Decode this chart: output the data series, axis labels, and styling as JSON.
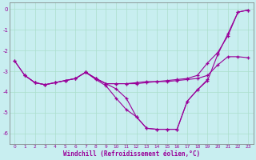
{
  "xlabel": "Windchill (Refroidissement éolien,°C)",
  "ylabel": "",
  "background_color": "#c8eef0",
  "line_color": "#990099",
  "grid_color": "#aaddcc",
  "xlim": [
    -0.5,
    23.5
  ],
  "ylim": [
    -6.5,
    0.3
  ],
  "xticks": [
    0,
    1,
    2,
    3,
    4,
    5,
    6,
    7,
    8,
    9,
    10,
    11,
    12,
    13,
    14,
    15,
    16,
    17,
    18,
    19,
    20,
    21,
    22,
    23
  ],
  "yticks": [
    0,
    -1,
    -2,
    -3,
    -4,
    -5,
    -6
  ],
  "lines": [
    {
      "x": [
        0,
        1,
        2,
        3,
        4,
        5,
        6,
        7,
        8,
        9,
        10,
        11,
        12,
        13,
        14,
        15,
        16,
        17,
        18,
        19,
        20,
        21,
        22,
        23
      ],
      "y": [
        -2.5,
        -3.2,
        -3.55,
        -3.65,
        -3.55,
        -3.45,
        -3.35,
        -3.05,
        -3.4,
        -3.7,
        -4.3,
        -4.85,
        -5.2,
        -5.75,
        -5.8,
        -5.8,
        -5.8,
        -4.45,
        -3.9,
        -3.45,
        -2.2,
        -1.2,
        -0.15,
        -0.05
      ]
    },
    {
      "x": [
        0,
        1,
        2,
        3,
        4,
        5,
        6,
        7,
        8,
        9,
        10,
        11,
        12,
        13,
        14,
        15,
        16,
        17,
        18,
        19,
        20,
        21,
        22,
        23
      ],
      "y": [
        -2.5,
        -3.2,
        -3.55,
        -3.65,
        -3.55,
        -3.45,
        -3.35,
        -3.05,
        -3.35,
        -3.6,
        -3.6,
        -3.6,
        -3.6,
        -3.55,
        -3.5,
        -3.5,
        -3.45,
        -3.4,
        -3.35,
        -3.2,
        -2.7,
        -2.3,
        -2.3,
        -2.35
      ]
    },
    {
      "x": [
        1,
        2,
        3,
        4,
        5,
        6,
        7,
        8,
        9,
        10,
        11,
        12,
        13,
        14,
        15,
        16,
        17,
        18,
        19,
        20,
        21,
        22,
        23
      ],
      "y": [
        -3.2,
        -3.55,
        -3.65,
        -3.55,
        -3.45,
        -3.35,
        -3.05,
        -3.35,
        -3.6,
        -3.6,
        -3.6,
        -3.55,
        -3.5,
        -3.5,
        -3.45,
        -3.4,
        -3.35,
        -3.2,
        -2.6,
        -2.1,
        -1.3,
        -0.15,
        -0.05
      ]
    },
    {
      "x": [
        7,
        8,
        9,
        10,
        11,
        12,
        13,
        14,
        15,
        16,
        17,
        18,
        19
      ],
      "y": [
        -3.05,
        -3.35,
        -3.6,
        -3.85,
        -4.3,
        -5.2,
        -5.75,
        -5.8,
        -5.8,
        -5.8,
        -4.45,
        -3.9,
        -3.4
      ]
    }
  ]
}
